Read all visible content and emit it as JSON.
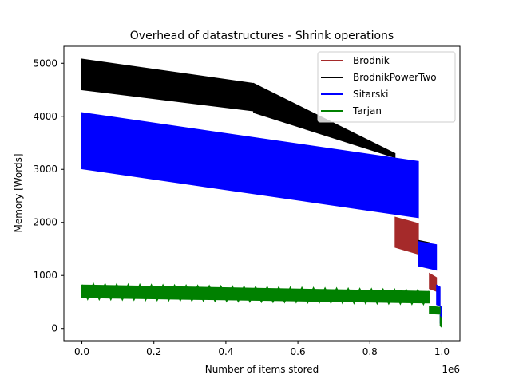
{
  "chart_data": {
    "type": "area",
    "title": "Overhead of datastructures - Shrink operations",
    "xlabel": "Number of items stored",
    "ylabel": "Memory [Words]",
    "x_offset_label": "1e6",
    "xlim": [
      -0.05,
      1.05
    ],
    "ylim": [
      -230,
      5320
    ],
    "xticks": [
      0.0,
      0.2,
      0.4,
      0.6,
      0.8,
      1.0
    ],
    "xtick_labels": [
      "0.0",
      "0.2",
      "0.4",
      "0.6",
      "0.8",
      "1.0"
    ],
    "yticks": [
      0,
      1000,
      2000,
      3000,
      4000,
      5000
    ],
    "ytick_labels": [
      "0",
      "1000",
      "2000",
      "3000",
      "4000",
      "5000"
    ],
    "grid": false,
    "legend_position": "top-right",
    "series": [
      {
        "name": "Brodnik",
        "color": "#a52a2a",
        "bands": [
          {
            "x": [
              0.87,
              0.935
            ],
            "upper": [
              2100,
              1980
            ],
            "lower": [
              1530,
              1400
            ]
          },
          {
            "x": [
              0.965,
              0.985
            ],
            "upper": [
              1040,
              960
            ],
            "lower": [
              750,
              700
            ]
          }
        ]
      },
      {
        "name": "BrodnikPowerTwo",
        "color": "#000000",
        "bands": [
          {
            "x": [
              0.0,
              0.477
            ],
            "upper": [
              5080,
              4620
            ],
            "lower": [
              4500,
              4100
            ]
          },
          {
            "x": [
              0.477,
              0.87
            ],
            "upper": [
              4620,
              3300
            ],
            "lower": [
              4070,
              3220
            ]
          },
          {
            "x": [
              0.935,
              0.965
            ],
            "upper": [
              1660,
              1620
            ],
            "lower": [
              1230,
              1200
            ]
          }
        ]
      },
      {
        "name": "Sitarski",
        "color": "#0000ff",
        "bands": [
          {
            "x": [
              0.0,
              0.935
            ],
            "upper": [
              4070,
              3150
            ],
            "lower": [
              3010,
              2090
            ]
          },
          {
            "x": [
              0.935,
              0.985
            ],
            "upper": [
              1640,
              1580
            ],
            "lower": [
              1180,
              1100
            ]
          },
          {
            "x": [
              0.985,
              0.995
            ],
            "upper": [
              820,
              780
            ],
            "lower": [
              450,
              420
            ]
          },
          {
            "x": [
              0.995,
              1.0
            ],
            "upper": [
              420,
              400
            ],
            "lower": [
              100,
              50
            ]
          }
        ]
      },
      {
        "name": "Tarjan",
        "color": "#008000",
        "bands": [
          {
            "x": [
              0.0,
              0.965
            ],
            "upper": [
              820,
              700
            ],
            "lower": [
              580,
              480
            ]
          },
          {
            "x": [
              0.965,
              0.995
            ],
            "upper": [
              420,
              400
            ],
            "lower": [
              280,
              270
            ]
          },
          {
            "x": [
              0.995,
              1.0
            ],
            "upper": [
              230,
              180
            ],
            "lower": [
              50,
              20
            ]
          }
        ]
      }
    ]
  }
}
